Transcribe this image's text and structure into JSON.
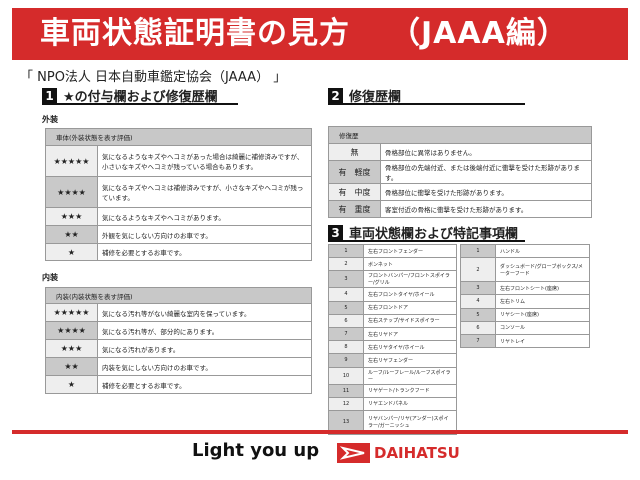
{
  "header": {
    "title": "車両状態証明書の見方",
    "subtitle": "（JAAA編）"
  },
  "org": "「 NPO法人 日本自動車鑑定協会（JAAA） 」",
  "section1": {
    "num": "1",
    "title": "★の付与欄および修復歴欄",
    "exterior": {
      "label": "外装",
      "header": "車体(外装状態を表す評価)",
      "rows": [
        {
          "stars": "★★★★★",
          "text": "気になるようなキズやヘコミがあった場合は綺麗に補修済みですが、小さいなキズやヘコミが残っている場合もあります。"
        },
        {
          "stars": "★★★★",
          "text": "気になるキズやヘコミは補修済みですが、小さなキズやヘコミが残っています。"
        },
        {
          "stars": "★★★",
          "text": "気になるようなキズやヘコミがあります。"
        },
        {
          "stars": "★★",
          "text": "外観を気にしない方向けのお車です。"
        },
        {
          "stars": "★",
          "text": "補修を必要とするお車です。"
        }
      ]
    },
    "interior": {
      "label": "内装",
      "header": "内装(内装状態を表す評価)",
      "rows": [
        {
          "stars": "★★★★★",
          "text": "気になる汚れ等がない綺麗な室内を保っています。"
        },
        {
          "stars": "★★★★",
          "text": "気になる汚れ等が、部分的にあります。"
        },
        {
          "stars": "★★★",
          "text": "気になる汚れがあります。"
        },
        {
          "stars": "★★",
          "text": "内装を気にしない方向けのお車です。"
        },
        {
          "stars": "★",
          "text": "補修を必要とするお車です。"
        }
      ]
    }
  },
  "section2": {
    "num": "2",
    "title": "修復歴欄",
    "header": "修復歴",
    "rows": [
      {
        "k": "無",
        "text": "骨格部位に異常はありません。"
      },
      {
        "k": "有　軽度",
        "text": "骨格部位の先端付近、または後端付近に衝撃を受けた形跡があります。"
      },
      {
        "k": "有　中度",
        "text": "骨格部位に衝撃を受けた形跡があります。"
      },
      {
        "k": "有　重度",
        "text": "客室付近の骨格に衝撃を受けた形跡があります。"
      }
    ]
  },
  "section3": {
    "num": "3",
    "title": "車両状態欄および特記事項欄",
    "exterior": [
      [
        "1",
        "左右フロントフェンダー"
      ],
      [
        "2",
        "ボンネット"
      ],
      [
        "3",
        "フロントバンパー/フロントスポイラー/グリル"
      ],
      [
        "4",
        "左右フロントタイヤ/ホイール"
      ],
      [
        "5",
        "左右フロントドア"
      ],
      [
        "6",
        "左右ステップ/サイドスポイラー"
      ],
      [
        "7",
        "左右リヤドア"
      ],
      [
        "8",
        "左右リヤタイヤ/ホイール"
      ],
      [
        "9",
        "左右リヤフェンダー"
      ],
      [
        "10",
        "ルーフ/ルーフレール/ルーフスポイラー"
      ],
      [
        "11",
        "リヤゲート/トランクフード"
      ],
      [
        "12",
        "リヤエンドパネル"
      ],
      [
        "13",
        "リヤバンパー/リヤ(アンダー)スポイラー/ガーニッシュ"
      ]
    ],
    "interior": [
      [
        "1",
        "ハンドル"
      ],
      [
        "2",
        "ダッシュボード/グローブボックス/メーターフード"
      ],
      [
        "3",
        "左右フロントシート(座席)"
      ],
      [
        "4",
        "左右トリム"
      ],
      [
        "5",
        "リヤシート(座席)"
      ],
      [
        "6",
        "コンソール"
      ],
      [
        "7",
        "リヤトレイ"
      ]
    ]
  },
  "footer": {
    "slogan": "Light you up",
    "brand": "DAIHATSU"
  },
  "colors": {
    "brand_red": "#d52b2b"
  }
}
